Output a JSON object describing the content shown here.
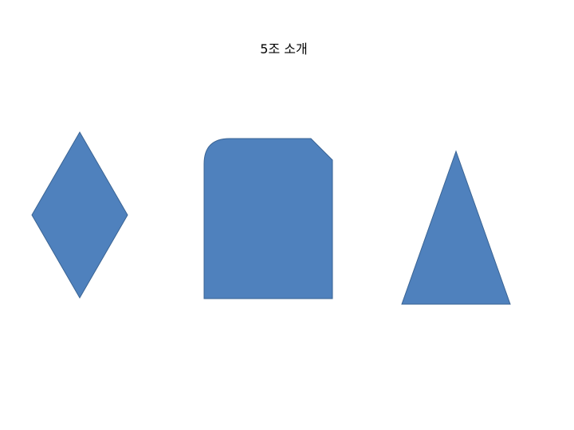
{
  "slide": {
    "title": "5조 소개",
    "shape_fill": "#4f81bd",
    "shape_stroke": "#3a6494",
    "shapes": [
      {
        "name": "diamond-shape",
        "kind": "diamond"
      },
      {
        "name": "snip-round-rectangle-shape",
        "kind": "rounded-snipped-rectangle"
      },
      {
        "name": "triangle-shape",
        "kind": "triangle"
      }
    ]
  }
}
